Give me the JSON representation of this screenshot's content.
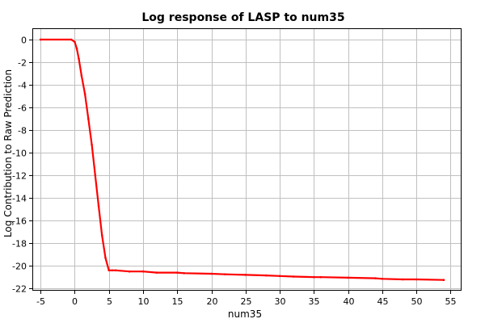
{
  "chart_data": {
    "type": "line",
    "title": "Log response of LASP to num35",
    "xlabel": "num35",
    "ylabel": "Log Contribution to Raw Prediction",
    "xlim": [
      -6.2,
      56.6
    ],
    "ylim": [
      -22.2,
      1.0
    ],
    "xticks": [
      -5,
      0,
      5,
      10,
      15,
      20,
      25,
      30,
      35,
      40,
      45,
      50,
      55
    ],
    "yticks": [
      0,
      -2,
      -4,
      -6,
      -8,
      -10,
      -12,
      -14,
      -16,
      -18,
      -20,
      -22
    ],
    "grid": true,
    "series": [
      {
        "color": "#ff0000",
        "x": [
          -5,
          -0.5,
          0,
          0.3,
          0.6,
          1,
          1.5,
          2,
          2.5,
          3,
          3.5,
          4,
          4.5,
          5,
          5.5,
          6,
          8,
          10,
          12,
          15,
          16,
          20,
          22,
          25,
          28,
          30,
          32,
          35,
          36,
          40,
          44,
          45,
          48,
          50,
          54
        ],
        "y": [
          0,
          0,
          -0.2,
          -0.8,
          -1.7,
          -3.2,
          -4.8,
          -7,
          -9.3,
          -12,
          -14.7,
          -17.3,
          -19.3,
          -20.4,
          -20.4,
          -20.4,
          -20.5,
          -20.5,
          -20.6,
          -20.6,
          -20.65,
          -20.7,
          -20.75,
          -20.8,
          -20.85,
          -20.9,
          -20.95,
          -21.0,
          -21.0,
          -21.05,
          -21.1,
          -21.15,
          -21.2,
          -21.2,
          -21.25
        ]
      }
    ]
  }
}
